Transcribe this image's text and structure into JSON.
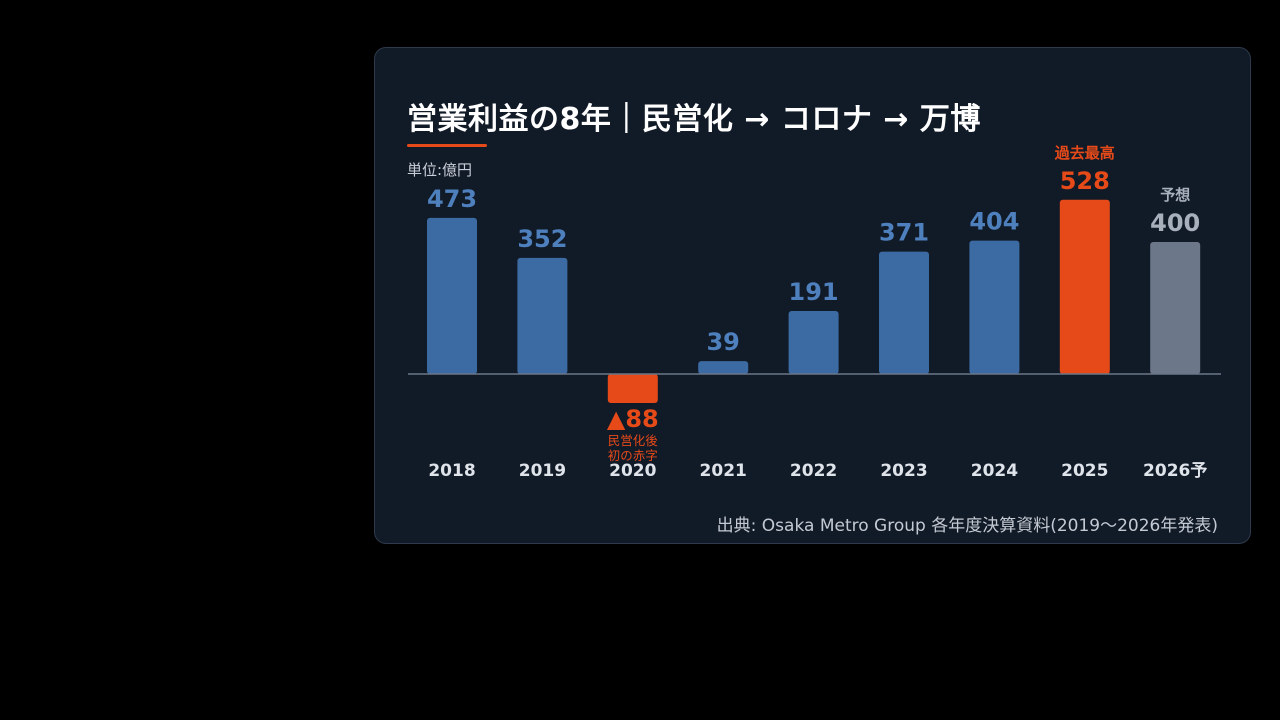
{
  "title": "営業利益の8年｜民営化 → コロナ → 万博",
  "unit_label": "単位:億円",
  "source": "出典: Osaka Metro Group 各年度決算資料(2019〜2026年発表)",
  "colors": {
    "bar": "#3c6aa2",
    "highlight": "#e64a19",
    "forecast": "#6c7889",
    "value_blue": "#4f80be",
    "forecast_text": "#a8b0bc",
    "baseline": "#6b7687"
  },
  "chart_data": {
    "type": "bar",
    "categories": [
      "2018",
      "2019",
      "2020",
      "2021",
      "2022",
      "2023",
      "2024",
      "2025",
      "2026予"
    ],
    "values": [
      473,
      352,
      -88,
      39,
      191,
      371,
      404,
      528,
      400
    ],
    "value_labels": [
      "473",
      "352",
      "▲88",
      "39",
      "191",
      "371",
      "404",
      "528",
      "400"
    ],
    "annotations": [
      {
        "index": 2,
        "lines": [
          "民営化後",
          "初の赤字"
        ]
      },
      {
        "index": 7,
        "lines": [
          "過去最高"
        ]
      },
      {
        "index": 8,
        "lines": [
          "予想"
        ]
      }
    ],
    "title": "営業利益の8年｜民営化 → コロナ → 万博",
    "ylabel": "単位:億円",
    "highlight_index": 7,
    "forecast_index": 8,
    "negative_index": 2,
    "grid": false
  }
}
